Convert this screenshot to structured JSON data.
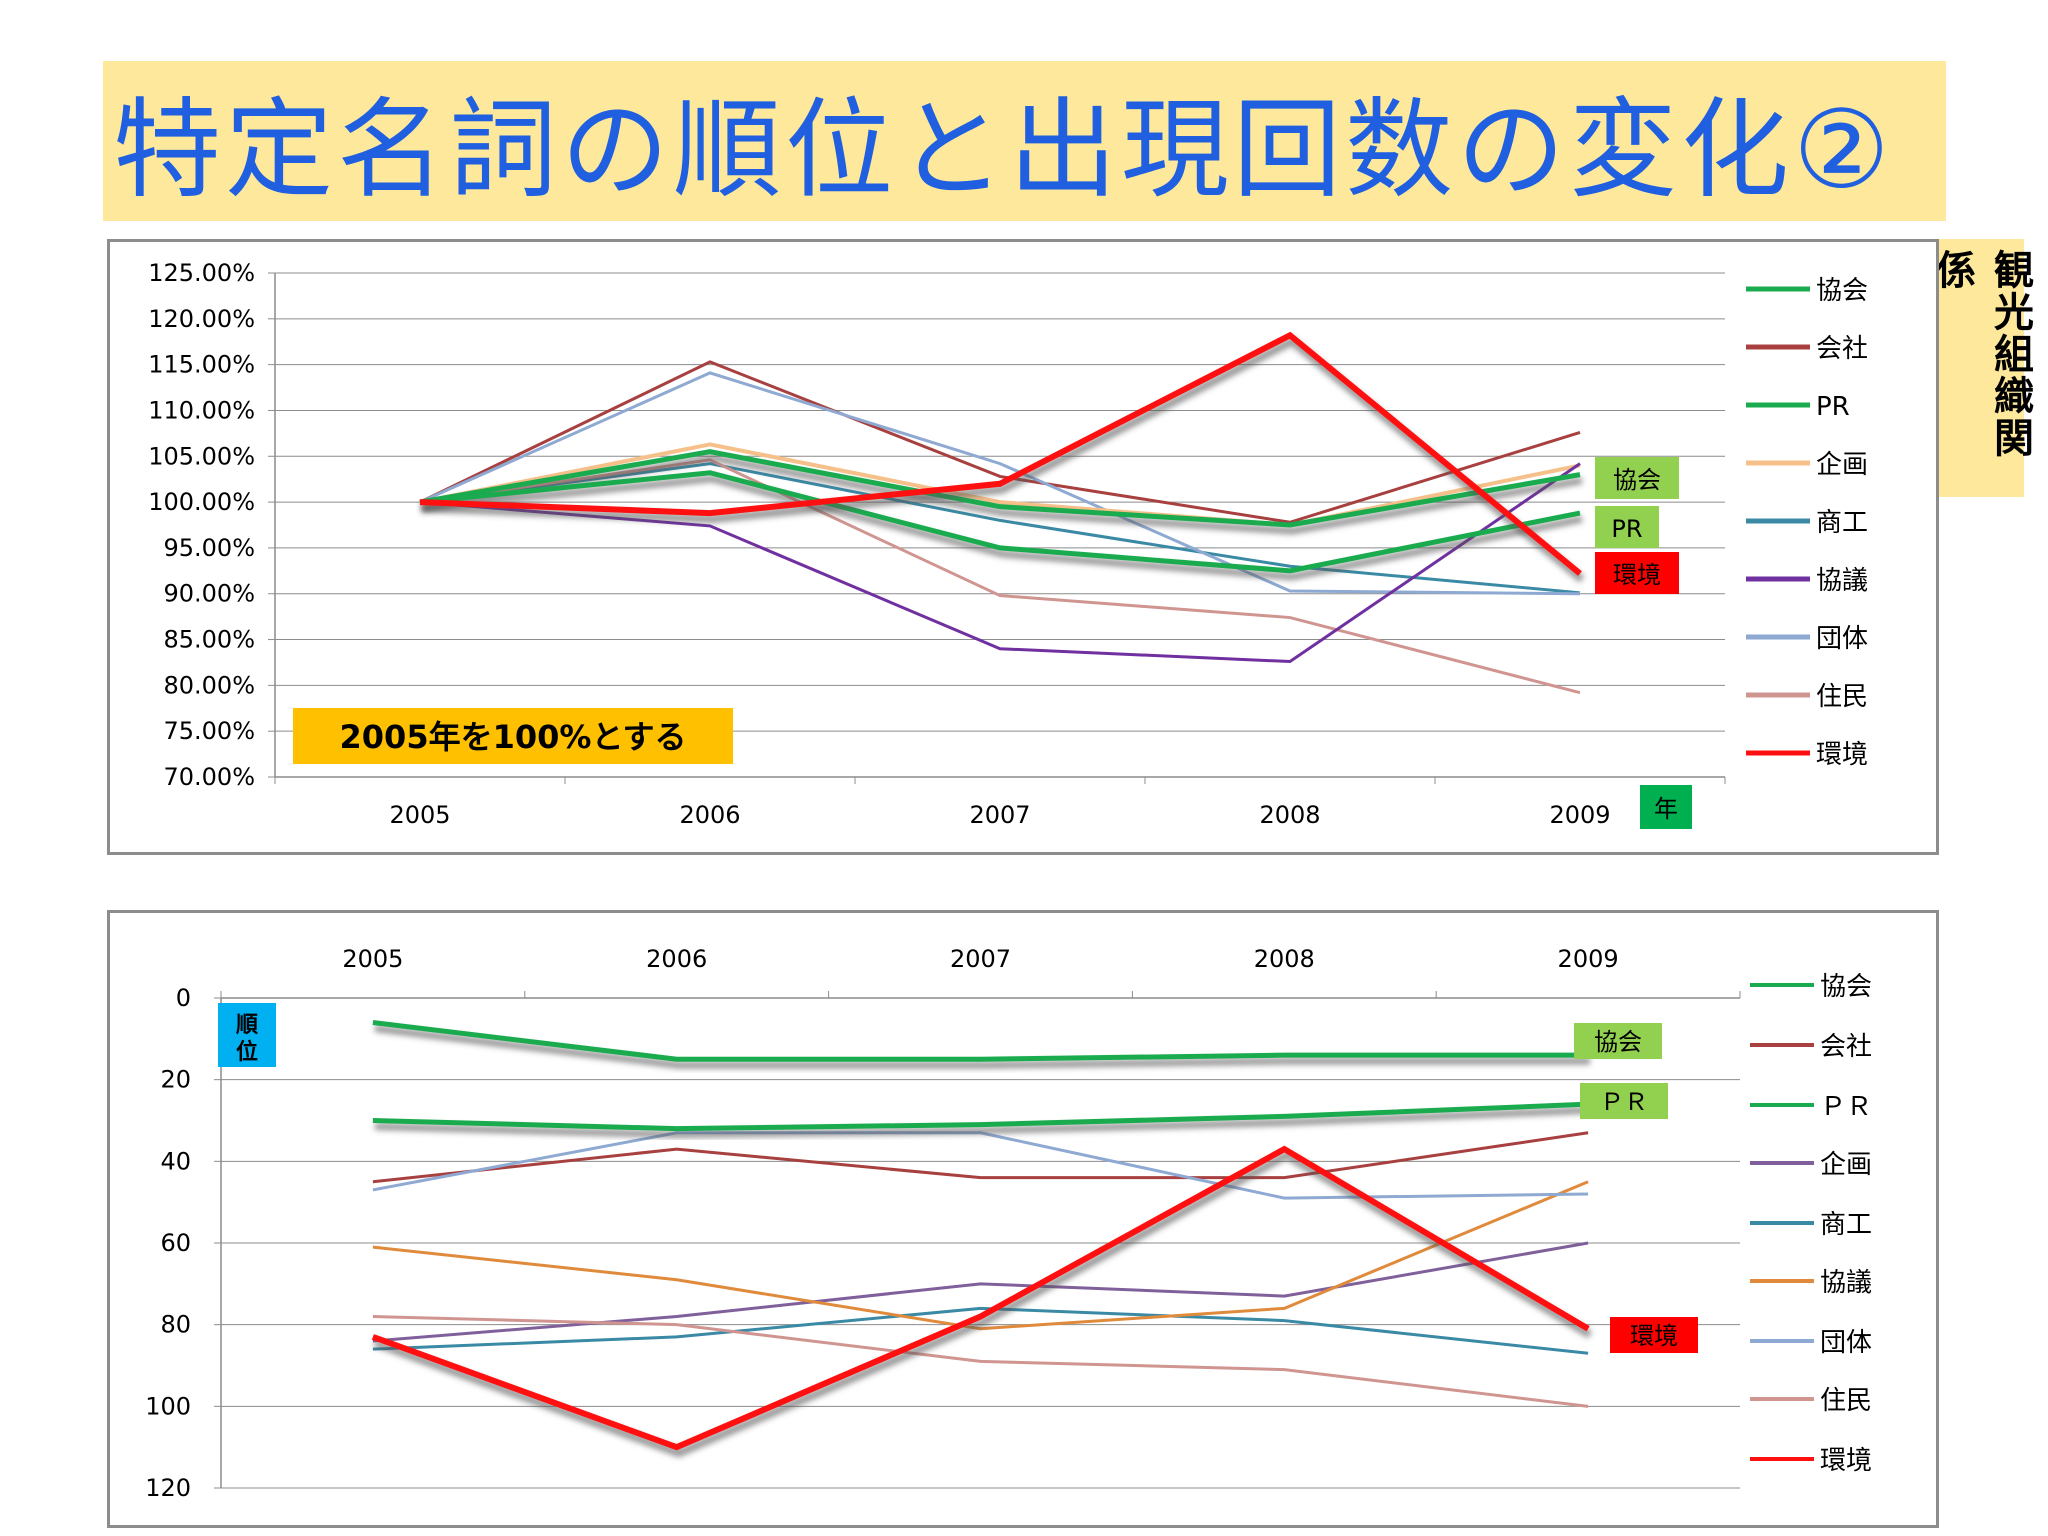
{
  "title": "特定名詞の順位と出現回数の変化②",
  "side_label": "観光組織関係",
  "chart_data": [
    {
      "type": "line",
      "x": [
        "2005",
        "2006",
        "2007",
        "2008",
        "2009"
      ],
      "yticks": [
        "125.00%",
        "120.00%",
        "115.00%",
        "110.00%",
        "105.00%",
        "100.00%",
        "95.00%",
        "90.00%",
        "85.00%",
        "80.00%",
        "75.00%",
        "70.00%"
      ],
      "ylim": [
        70,
        125
      ],
      "xlabel": "年",
      "note": "2005年を100%とする",
      "legend_position": "right",
      "series": [
        {
          "name": "協会",
          "color": "#1aab4f",
          "values": [
            100,
            105.5,
            99.5,
            97.5,
            103
          ],
          "width": 5,
          "shadow": true
        },
        {
          "name": "会社",
          "color": "#a84040",
          "values": [
            100,
            115.3,
            102.8,
            97.8,
            107.6
          ],
          "width": 3
        },
        {
          "name": "PR",
          "color": "#1aab4f",
          "values": [
            100,
            103.2,
            95,
            92.5,
            98.8
          ],
          "width": 5,
          "shadow": true
        },
        {
          "name": "企画",
          "color": "#f5c08a",
          "values": [
            100,
            106.3,
            100,
            97.5,
            104
          ],
          "width": 4
        },
        {
          "name": "商工",
          "color": "#3a8aa5",
          "values": [
            100,
            104.2,
            98,
            93,
            90.1
          ],
          "width": 3
        },
        {
          "name": "協議",
          "color": "#7030a0",
          "values": [
            100,
            97.4,
            84,
            82.6,
            104.2
          ],
          "width": 3
        },
        {
          "name": "団体",
          "color": "#8ea9d2",
          "values": [
            100,
            114.1,
            104.2,
            90.3,
            90
          ],
          "width": 3
        },
        {
          "name": "住民",
          "color": "#d09590",
          "values": [
            100,
            104.6,
            89.8,
            87.4,
            79.2
          ],
          "width": 3
        },
        {
          "name": "環境",
          "color": "#ff1010",
          "values": [
            100,
            98.8,
            102,
            118.2,
            92.2
          ],
          "width": 6,
          "shadow": true
        }
      ],
      "tags": [
        {
          "text": "協会",
          "bg": "#92d050",
          "fg": "#000000"
        },
        {
          "text": "PR",
          "bg": "#92d050",
          "fg": "#000000"
        },
        {
          "text": "環境",
          "bg": "#ff0000",
          "fg": "#000000"
        },
        {
          "text": "年",
          "bg": "#00b050",
          "fg": "#000000"
        }
      ]
    },
    {
      "type": "line",
      "x": [
        "2005",
        "2006",
        "2007",
        "2008",
        "2009"
      ],
      "yticks": [
        "0",
        "20",
        "40",
        "60",
        "80",
        "100",
        "120"
      ],
      "ylim": [
        0,
        120
      ],
      "y_inverted": true,
      "ylabel": "順位",
      "legend_position": "right",
      "series": [
        {
          "name": "協会",
          "color": "#1aab4f",
          "values": [
            6,
            15,
            15,
            14,
            14
          ],
          "width": 5,
          "shadow": true
        },
        {
          "name": "会社",
          "color": "#a84040",
          "values": [
            45,
            37,
            44,
            44,
            33
          ],
          "width": 3
        },
        {
          "name": "ＰＲ",
          "color": "#1aab4f",
          "values": [
            30,
            32,
            31,
            29,
            26
          ],
          "width": 5,
          "shadow": true
        },
        {
          "name": "企画",
          "color": "#80609a",
          "values": [
            84,
            78,
            70,
            73,
            60
          ],
          "width": 3
        },
        {
          "name": "商工",
          "color": "#3a8aa5",
          "values": [
            86,
            83,
            76,
            79,
            87
          ],
          "width": 3
        },
        {
          "name": "協議",
          "color": "#e08a3c",
          "values": [
            61,
            69,
            81,
            76,
            45
          ],
          "width": 3
        },
        {
          "name": "団体",
          "color": "#8ea9d2",
          "values": [
            47,
            33,
            33,
            49,
            48
          ],
          "width": 3
        },
        {
          "name": "住民",
          "color": "#d09590",
          "values": [
            78,
            80,
            89,
            91,
            100
          ],
          "width": 3
        },
        {
          "name": "環境",
          "color": "#ff1010",
          "values": [
            83,
            110,
            78,
            37,
            81
          ],
          "width": 6,
          "shadow": true
        }
      ],
      "tags": [
        {
          "text": "協会",
          "bg": "#92d050",
          "fg": "#000000"
        },
        {
          "text": "ＰＲ",
          "bg": "#92d050",
          "fg": "#000000"
        },
        {
          "text": "環境",
          "bg": "#ff0000",
          "fg": "#000000"
        }
      ]
    }
  ]
}
